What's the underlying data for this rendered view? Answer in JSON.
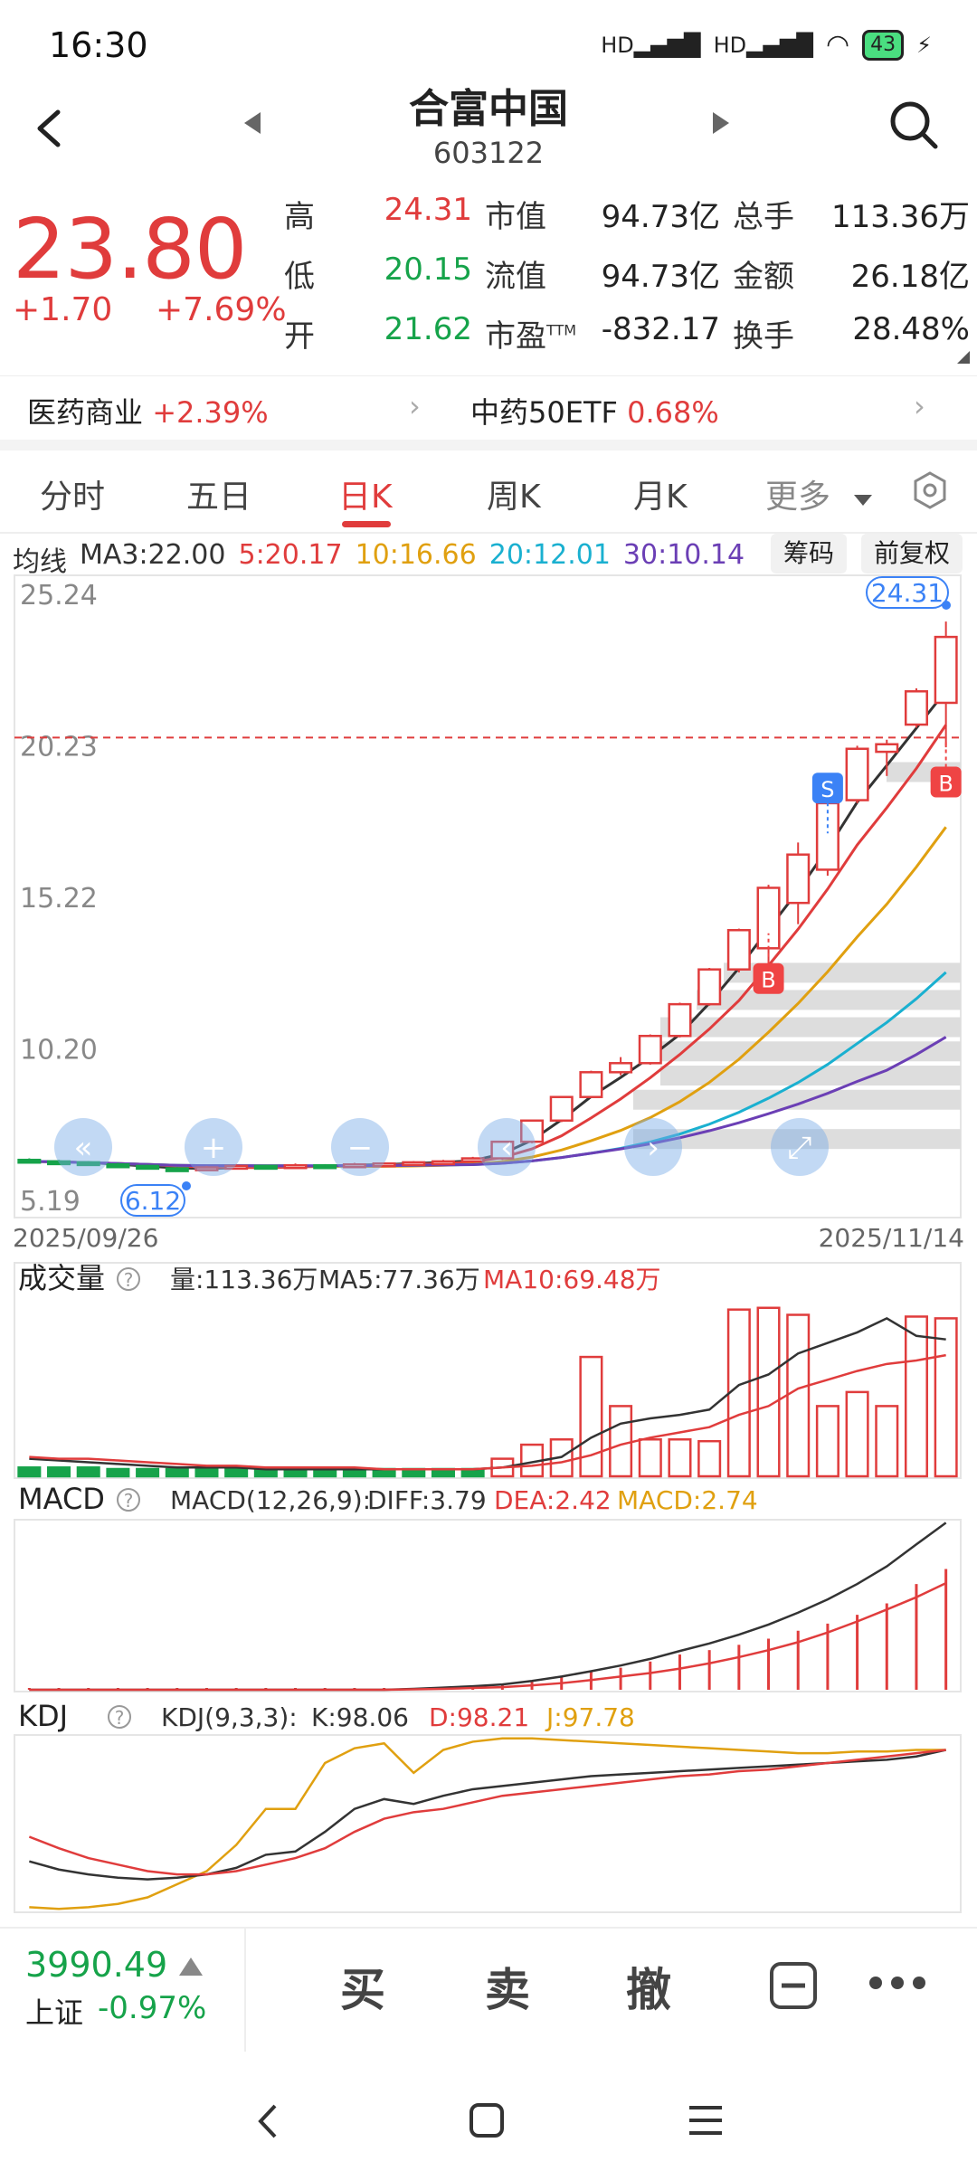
{
  "status_bar": {
    "time": "16:30",
    "battery": "43",
    "signal1": "HD",
    "signal2": "HD"
  },
  "header": {
    "name": "合富中国",
    "code": "603122"
  },
  "quote": {
    "price": "23.80",
    "change": "+1.70",
    "change_pct": "+7.69%",
    "stats": [
      {
        "label": "高",
        "value": "24.31",
        "color": "red"
      },
      {
        "label": "市值",
        "value": "94.73亿"
      },
      {
        "label": "总手",
        "value": "113.36万"
      },
      {
        "label": "低",
        "value": "20.15",
        "color": "green"
      },
      {
        "label": "流值",
        "value": "94.73亿"
      },
      {
        "label": "金额",
        "value": "26.18亿"
      },
      {
        "label": "开",
        "value": "21.62",
        "color": "green"
      },
      {
        "label": "市盈",
        "label_sup": "TTM",
        "value": "-832.17"
      },
      {
        "label": "换手",
        "value": "28.48%"
      }
    ]
  },
  "industry": [
    {
      "name": "医药商业",
      "pct": "+2.39%"
    },
    {
      "name": "中药50ETF",
      "pct": "0.68%"
    }
  ],
  "tabs": [
    {
      "label": "分时"
    },
    {
      "label": "五日"
    },
    {
      "label": "日K"
    },
    {
      "label": "周K"
    },
    {
      "label": "月K"
    },
    {
      "label": "更多"
    }
  ],
  "ma_legend": {
    "title": "均线",
    "ma3": "MA3:22.00",
    "ma5": "5:20.17",
    "ma10": "10:16.66",
    "ma20": "20:12.01",
    "ma30": "30:10.14"
  },
  "buttons": {
    "chips": "筹码",
    "adjust": "前复权"
  },
  "colors": {
    "up": "#e03c3c",
    "down": "#16a34a",
    "ma3": "#333333",
    "ma5": "#e03c3c",
    "ma10": "#e0a010",
    "ma20": "#1ab0d0",
    "ma30": "#6b3fb5"
  },
  "chart_data": [
    {
      "type": "candlestick",
      "y_ticks": [
        "25.24",
        "20.23",
        "15.22",
        "10.20",
        "5.19"
      ],
      "ylim": [
        5.19,
        25.24
      ],
      "x_start_label": "2025/09/26",
      "x_end_label": "2025/11/14",
      "high_label": "24.31",
      "low_label": "6.12",
      "reference_line": 20.23,
      "candles": [
        {
          "o": 6.5,
          "c": 6.45,
          "h": 6.55,
          "l": 6.4
        },
        {
          "o": 6.45,
          "c": 6.42,
          "h": 6.5,
          "l": 6.38
        },
        {
          "o": 6.42,
          "c": 6.35,
          "h": 6.46,
          "l": 6.3
        },
        {
          "o": 6.35,
          "c": 6.3,
          "h": 6.4,
          "l": 6.25
        },
        {
          "o": 6.3,
          "c": 6.22,
          "h": 6.34,
          "l": 6.18
        },
        {
          "o": 6.22,
          "c": 6.18,
          "h": 6.26,
          "l": 6.12
        },
        {
          "o": 6.18,
          "c": 6.25,
          "h": 6.3,
          "l": 6.15
        },
        {
          "o": 6.25,
          "c": 6.3,
          "h": 6.36,
          "l": 6.2
        },
        {
          "o": 6.3,
          "c": 6.26,
          "h": 6.34,
          "l": 6.22
        },
        {
          "o": 6.26,
          "c": 6.32,
          "h": 6.38,
          "l": 6.24
        },
        {
          "o": 6.32,
          "c": 6.3,
          "h": 6.36,
          "l": 6.26
        },
        {
          "o": 6.3,
          "c": 6.35,
          "h": 6.4,
          "l": 6.28
        },
        {
          "o": 6.35,
          "c": 6.38,
          "h": 6.42,
          "l": 6.32
        },
        {
          "o": 6.38,
          "c": 6.42,
          "h": 6.46,
          "l": 6.34
        },
        {
          "o": 6.42,
          "c": 6.45,
          "h": 6.5,
          "l": 6.38
        },
        {
          "o": 6.45,
          "c": 6.55,
          "h": 6.6,
          "l": 6.4
        },
        {
          "o": 6.55,
          "c": 7.1,
          "h": 7.12,
          "l": 6.5
        },
        {
          "o": 7.1,
          "c": 7.8,
          "h": 7.82,
          "l": 7.05
        },
        {
          "o": 7.8,
          "c": 8.58,
          "h": 8.6,
          "l": 7.75
        },
        {
          "o": 8.58,
          "c": 9.4,
          "h": 9.45,
          "l": 8.55
        },
        {
          "o": 9.4,
          "c": 9.7,
          "h": 9.9,
          "l": 9.3
        },
        {
          "o": 9.7,
          "c": 10.6,
          "h": 10.65,
          "l": 9.65
        },
        {
          "o": 10.6,
          "c": 11.65,
          "h": 11.7,
          "l": 10.55
        },
        {
          "o": 11.65,
          "c": 12.8,
          "h": 12.85,
          "l": 11.6
        },
        {
          "o": 12.8,
          "c": 14.1,
          "h": 14.15,
          "l": 12.7
        },
        {
          "o": 13.5,
          "c": 15.5,
          "h": 15.6,
          "l": 12.4
        },
        {
          "o": 15.0,
          "c": 16.6,
          "h": 17.0,
          "l": 14.3
        },
        {
          "o": 16.1,
          "c": 18.3,
          "h": 18.4,
          "l": 15.9
        },
        {
          "o": 18.4,
          "c": 20.1,
          "h": 20.2,
          "l": 18.3
        },
        {
          "o": 20.0,
          "c": 20.25,
          "h": 20.4,
          "l": 19.2
        },
        {
          "o": 20.9,
          "c": 22.0,
          "h": 22.1,
          "l": 20.8
        },
        {
          "o": 21.62,
          "c": 23.8,
          "h": 24.31,
          "l": 20.15
        }
      ],
      "markers": [
        {
          "label": "S",
          "index": 27,
          "price": 18.8,
          "color": "#3b82f6"
        },
        {
          "label": "B",
          "index": 25,
          "price": 12.5,
          "color": "#ef4444"
        },
        {
          "label": "B",
          "index": 31,
          "price": 19.0,
          "color": "#ef4444"
        }
      ]
    },
    {
      "type": "bar",
      "title": "成交量",
      "legend": {
        "vol": "量:113.36万",
        "ma5": "MA5:77.36万",
        "ma10": "MA10:69.48万"
      },
      "values": [
        5,
        5,
        5,
        4,
        4,
        4,
        4,
        4,
        4,
        4,
        4,
        4,
        4,
        4,
        4,
        4,
        10,
        18,
        21,
        68,
        40,
        21,
        21,
        20,
        95,
        96,
        92,
        40,
        48,
        40,
        91,
        90
      ],
      "ma5": [
        10,
        9,
        8,
        7,
        6,
        5,
        5,
        5,
        4,
        4,
        4,
        4,
        4,
        4,
        4,
        4,
        5,
        8,
        11,
        22,
        30,
        33,
        35,
        38,
        52,
        58,
        70,
        76,
        82,
        90,
        80,
        78
      ],
      "ma10": [
        11,
        10,
        10,
        9,
        8,
        7,
        6,
        6,
        5,
        5,
        5,
        5,
        4,
        4,
        4,
        4,
        5,
        6,
        8,
        12,
        18,
        22,
        25,
        28,
        35,
        40,
        50,
        55,
        60,
        64,
        66,
        69
      ]
    },
    {
      "type": "line",
      "title": "MACD",
      "legend": {
        "params": "MACD(12,26,9):",
        "diff": "DIFF:3.79",
        "dea": "DEA:2.42",
        "macd": "MACD:2.74"
      },
      "diff": [
        0,
        0,
        0,
        0,
        0,
        0,
        0,
        0,
        0,
        0,
        0,
        0,
        0,
        0.02,
        0.05,
        0.08,
        0.12,
        0.2,
        0.3,
        0.42,
        0.55,
        0.7,
        0.88,
        1.05,
        1.25,
        1.48,
        1.75,
        2.05,
        2.4,
        2.8,
        3.3,
        3.79
      ],
      "dea": [
        0,
        0,
        0,
        0,
        0,
        0,
        0,
        0,
        0,
        0,
        0,
        0,
        0,
        0.01,
        0.02,
        0.04,
        0.06,
        0.1,
        0.15,
        0.22,
        0.3,
        0.38,
        0.48,
        0.6,
        0.74,
        0.9,
        1.08,
        1.3,
        1.55,
        1.82,
        2.1,
        2.42
      ],
      "hist": [
        0,
        0,
        0,
        0,
        0,
        0,
        0,
        0,
        0,
        0,
        0,
        0,
        0,
        0.02,
        0.05,
        0.08,
        0.12,
        0.2,
        0.3,
        0.4,
        0.5,
        0.64,
        0.8,
        0.9,
        1.02,
        1.16,
        1.34,
        1.5,
        1.7,
        1.96,
        2.4,
        2.74
      ]
    },
    {
      "type": "line",
      "title": "KDJ",
      "legend": {
        "params": "KDJ(9,3,3):",
        "k": "K:98.06",
        "d": "D:98.21",
        "j": "J:97.78"
      },
      "k": [
        30,
        25,
        22,
        20,
        19,
        20,
        22,
        26,
        34,
        36,
        48,
        62,
        68,
        65,
        70,
        74,
        76,
        78,
        80,
        82,
        83,
        84,
        85,
        86,
        87,
        88,
        89,
        90,
        91,
        92,
        94,
        98
      ],
      "d": [
        45,
        38,
        32,
        28,
        24,
        22,
        22,
        24,
        28,
        32,
        38,
        48,
        56,
        60,
        62,
        66,
        70,
        72,
        74,
        76,
        78,
        80,
        82,
        83,
        85,
        86,
        88,
        90,
        92,
        94,
        96,
        98
      ],
      "j": [
        2,
        1,
        2,
        4,
        8,
        16,
        24,
        40,
        62,
        62,
        90,
        99,
        102,
        84,
        98,
        103,
        105,
        105,
        104,
        103,
        102,
        101,
        100,
        99,
        98,
        97,
        96,
        96,
        97,
        97,
        98,
        98
      ]
    }
  ],
  "bottom": {
    "index_value": "3990.49",
    "index_name": "上证",
    "index_pct": "-0.97%",
    "buy": "买",
    "sell": "卖",
    "cancel": "撤"
  }
}
